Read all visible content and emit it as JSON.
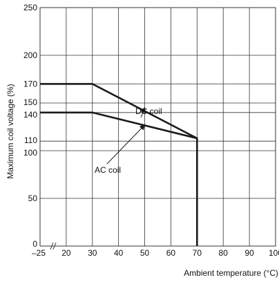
{
  "chart_data": {
    "type": "line",
    "title": "",
    "xlabel": "Ambient temperature (°C)",
    "ylabel": "Maximum coil voltage (%)",
    "x_ticks": [
      {
        "value": -25,
        "label": "–25"
      },
      {
        "value": 20,
        "label": "20"
      },
      {
        "value": 30,
        "label": "30"
      },
      {
        "value": 40,
        "label": "40"
      },
      {
        "value": 50,
        "label": "50"
      },
      {
        "value": 60,
        "label": "60"
      },
      {
        "value": 70,
        "label": "70"
      },
      {
        "value": 80,
        "label": "80"
      },
      {
        "value": 90,
        "label": "90"
      },
      {
        "value": 100,
        "label": "100"
      }
    ],
    "y_ticks": [
      {
        "value": 0,
        "label": "0"
      },
      {
        "value": 50,
        "label": "50"
      },
      {
        "value": 100,
        "label": "100"
      },
      {
        "value": 110,
        "label": "110"
      },
      {
        "value": 140,
        "label": "140"
      },
      {
        "value": 150,
        "label": "150"
      },
      {
        "value": 170,
        "label": "170"
      },
      {
        "value": 200,
        "label": "200"
      },
      {
        "value": 250,
        "label": "250"
      }
    ],
    "xlim": [
      -25,
      100
    ],
    "ylim": [
      0,
      250
    ],
    "x_axis_break": true,
    "grid": true,
    "series": [
      {
        "name": "DC coil",
        "x": [
          -25,
          30,
          70,
          70
        ],
        "y": [
          170,
          170,
          113,
          0
        ]
      },
      {
        "name": "AC coil",
        "x": [
          -25,
          30,
          70
        ],
        "y": [
          140,
          140,
          113
        ]
      }
    ],
    "annotations": [
      {
        "text": "DC coil",
        "series": "DC coil",
        "arrow_to": [
          50,
          145
        ]
      },
      {
        "text": "AC coil",
        "series": "AC coil",
        "arrow_to": [
          50,
          127
        ]
      }
    ],
    "colors": {
      "line": "#1a1a1a",
      "grid": "#333333",
      "text": "#111111"
    }
  }
}
